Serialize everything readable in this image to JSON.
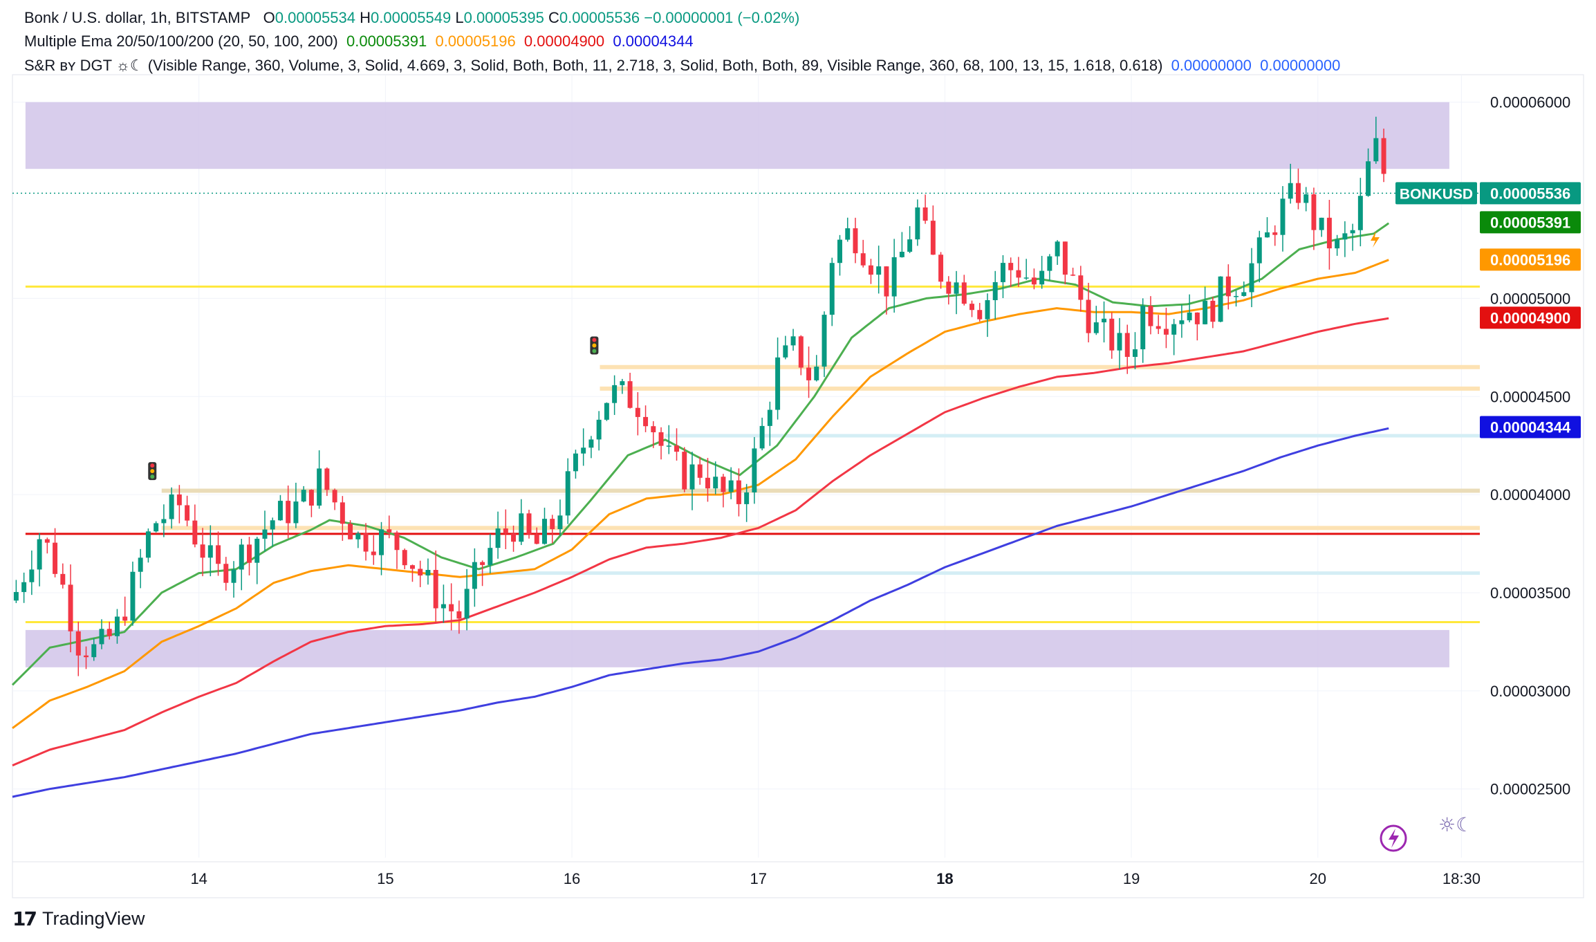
{
  "legend": {
    "line1": {
      "symbol": "Bonk / U.S. dollar, 1h, BITSTAMP",
      "o_label": "O",
      "o_value": "0.00005534",
      "h_label": "H",
      "h_value": "0.00005549",
      "l_label": "L",
      "l_value": "0.00005395",
      "c_label": "C",
      "c_value": "0.00005536",
      "change": "−0.00000001 (−0.02%)"
    },
    "line2": {
      "name": "Multiple Ema 20/50/100/200 (20, 50, 100, 200)",
      "values": [
        "0.00005391",
        "0.00005196",
        "0.00004900",
        "0.00004344"
      ]
    },
    "line3": {
      "name": "S&R ʙʏ DGT ☼☾ (Visible Range, 360, Volume, 3, Solid, 4.669, 3, Solid, Both, Both, 11, 2.718, 3, Solid, Both, Both, 89, Visible Range, 360, 68, 100, 13, 15, 1.618, 0.618)",
      "values": [
        "0.00000000",
        "0.00000000"
      ]
    }
  },
  "footer": {
    "logo": "𝟭𝟳",
    "brand": "TradingView"
  },
  "watermark": "☼☾",
  "colors": {
    "up": "#089981",
    "down": "#f23645",
    "ema20": "#4caf50",
    "ema50": "#ff9800",
    "ema100": "#f23645",
    "ema200": "#3f3fe0",
    "zone": "#d1c4e9",
    "yellow": "#ffeb3b",
    "red_line": "#e31010"
  },
  "chart_data": {
    "type": "candlestick",
    "title": "Bonk / U.S. dollar, 1h, BITSTAMP",
    "y_ticks": [
      "0.00002500",
      "0.00003000",
      "0.00003500",
      "0.00004000",
      "0.00004500",
      "0.00005000",
      "0.00006000"
    ],
    "y_tick_values": [
      2.5e-05,
      3e-05,
      3.5e-05,
      4e-05,
      4.5e-05,
      5e-05,
      6e-05
    ],
    "ylim": [
      2.15e-05,
      6.14e-05
    ],
    "x_ticks": [
      {
        "label": "14",
        "day": 14,
        "bold": false
      },
      {
        "label": "15",
        "day": 15,
        "bold": false
      },
      {
        "label": "16",
        "day": 16,
        "bold": false
      },
      {
        "label": "17",
        "day": 17,
        "bold": false
      },
      {
        "label": "18",
        "day": 18,
        "bold": true
      },
      {
        "label": "19",
        "day": 19,
        "bold": false
      },
      {
        "label": "20",
        "day": 20,
        "bold": false
      },
      {
        "label": "18:30",
        "day": 20.77,
        "bold": false
      }
    ],
    "x_range_days": [
      13.0,
      20.85
    ],
    "last_day": 20.39,
    "price_labels": [
      {
        "text": "BONKUSD",
        "value": 5.536e-05,
        "color": "#089981",
        "wide": true
      },
      {
        "text": "0.00005536",
        "value": 5.536e-05,
        "color": "#089981"
      },
      {
        "text": "0.00005391",
        "value": 5.391e-05,
        "color": "#0a8a0a"
      },
      {
        "text": "0.00005196",
        "value": 5.196e-05,
        "color": "#ff9800"
      },
      {
        "text": "0.00004900",
        "value": 4.9e-05,
        "color": "#e31010"
      },
      {
        "text": "0.00004344",
        "value": 4.344e-05,
        "color": "#1010e0"
      }
    ],
    "zones": [
      {
        "from": 5.66e-05,
        "to": 6e-05,
        "color": "#d1c4e9"
      },
      {
        "from": 3.12e-05,
        "to": 3.31e-05,
        "color": "#d1c4e9"
      }
    ],
    "levels": [
      {
        "value": 5.06e-05,
        "color": "#ffe83a",
        "width": 3,
        "start_day": 13.07
      },
      {
        "value": 3.35e-05,
        "color": "#ffe83a",
        "width": 3,
        "start_day": 13.07
      },
      {
        "value": 3.8e-05,
        "color": "#e31010",
        "width": 3,
        "start_day": 13.07
      },
      {
        "value": 4.65e-05,
        "color": "#fde2b3",
        "width": 6,
        "start_day": 16.15
      },
      {
        "value": 4.54e-05,
        "color": "#fde2b3",
        "width": 6,
        "start_day": 16.15
      },
      {
        "value": 4.3e-05,
        "color": "#d4eef5",
        "width": 5,
        "start_day": 16.5
      },
      {
        "value": 4.02e-05,
        "color": "#eadcb8",
        "width": 6,
        "start_day": 13.8
      },
      {
        "value": 3.83e-05,
        "color": "#fde2b3",
        "width": 6,
        "start_day": 13.8
      },
      {
        "value": 3.6e-05,
        "color": "#d4eef5",
        "width": 5,
        "start_day": 15.5
      }
    ],
    "candle_points": [
      [
        13.0,
        3.46e-05
      ],
      [
        13.15,
        3.8e-05
      ],
      [
        13.25,
        3.6e-05
      ],
      [
        13.35,
        3.25e-05
      ],
      [
        13.45,
        3.2e-05
      ],
      [
        13.55,
        3.3e-05
      ],
      [
        13.65,
        3.55e-05
      ],
      [
        13.75,
        3.85e-05
      ],
      [
        13.9,
        3.95e-05
      ],
      [
        14.0,
        3.75e-05
      ],
      [
        14.1,
        3.6e-05
      ],
      [
        14.25,
        3.72e-05
      ],
      [
        14.4,
        3.88e-05
      ],
      [
        14.55,
        3.95e-05
      ],
      [
        14.65,
        4.08e-05
      ],
      [
        14.75,
        3.93e-05
      ],
      [
        14.85,
        3.78e-05
      ],
      [
        15.0,
        3.78e-05
      ],
      [
        15.1,
        3.72e-05
      ],
      [
        15.2,
        3.58e-05
      ],
      [
        15.3,
        3.45e-05
      ],
      [
        15.4,
        3.38e-05
      ],
      [
        15.5,
        3.62e-05
      ],
      [
        15.6,
        3.78e-05
      ],
      [
        15.7,
        3.85e-05
      ],
      [
        15.8,
        3.73e-05
      ],
      [
        15.9,
        3.85e-05
      ],
      [
        16.0,
        4.1e-05
      ],
      [
        16.1,
        4.35e-05
      ],
      [
        16.2,
        4.52e-05
      ],
      [
        16.3,
        4.5e-05
      ],
      [
        16.4,
        4.43e-05
      ],
      [
        16.5,
        4.2e-05
      ],
      [
        16.6,
        4.1e-05
      ],
      [
        16.7,
        4.13e-05
      ],
      [
        16.8,
        4e-05
      ],
      [
        16.9,
        3.98e-05
      ],
      [
        17.0,
        4.25e-05
      ],
      [
        17.1,
        4.65e-05
      ],
      [
        17.2,
        4.75e-05
      ],
      [
        17.3,
        4.55e-05
      ],
      [
        17.4,
        5.25e-05
      ],
      [
        17.5,
        5.35e-05
      ],
      [
        17.6,
        5.2e-05
      ],
      [
        17.7,
        5.05e-05
      ],
      [
        17.8,
        5.3e-05
      ],
      [
        17.85,
        5.45e-05
      ],
      [
        17.95,
        5.15e-05
      ],
      [
        18.1,
        5.05e-05
      ],
      [
        18.2,
        4.95e-05
      ],
      [
        18.3,
        5.15e-05
      ],
      [
        18.4,
        5.15e-05
      ],
      [
        18.5,
        5.05e-05
      ],
      [
        18.6,
        5.25e-05
      ],
      [
        18.7,
        5.05e-05
      ],
      [
        18.8,
        4.85e-05
      ],
      [
        18.9,
        4.78e-05
      ],
      [
        19.0,
        4.7e-05
      ],
      [
        19.05,
        4.95e-05
      ],
      [
        19.2,
        4.9e-05
      ],
      [
        19.3,
        4.95e-05
      ],
      [
        19.4,
        4.92e-05
      ],
      [
        19.5,
        5.05e-05
      ],
      [
        19.6,
        5.1e-05
      ],
      [
        19.7,
        5.25e-05
      ],
      [
        19.8,
        5.45e-05
      ],
      [
        19.9,
        5.55e-05
      ],
      [
        20.0,
        5.35e-05
      ],
      [
        20.1,
        5.25e-05
      ],
      [
        20.2,
        5.35e-05
      ],
      [
        20.3,
        5.8e-05
      ],
      [
        20.39,
        5.53e-05
      ]
    ],
    "ema20_points": [
      [
        13.0,
        3.03e-05
      ],
      [
        13.2,
        3.22e-05
      ],
      [
        13.4,
        3.26e-05
      ],
      [
        13.6,
        3.3e-05
      ],
      [
        13.8,
        3.5e-05
      ],
      [
        14.0,
        3.6e-05
      ],
      [
        14.2,
        3.62e-05
      ],
      [
        14.4,
        3.74e-05
      ],
      [
        14.6,
        3.82e-05
      ],
      [
        14.7,
        3.87e-05
      ],
      [
        14.9,
        3.84e-05
      ],
      [
        15.1,
        3.78e-05
      ],
      [
        15.3,
        3.68e-05
      ],
      [
        15.5,
        3.62e-05
      ],
      [
        15.7,
        3.68e-05
      ],
      [
        15.9,
        3.75e-05
      ],
      [
        16.1,
        3.97e-05
      ],
      [
        16.3,
        4.2e-05
      ],
      [
        16.5,
        4.28e-05
      ],
      [
        16.7,
        4.18e-05
      ],
      [
        16.9,
        4.1e-05
      ],
      [
        17.1,
        4.25e-05
      ],
      [
        17.3,
        4.5e-05
      ],
      [
        17.5,
        4.8e-05
      ],
      [
        17.7,
        4.95e-05
      ],
      [
        17.9,
        5e-05
      ],
      [
        18.1,
        5.02e-05
      ],
      [
        18.3,
        5.05e-05
      ],
      [
        18.5,
        5.1e-05
      ],
      [
        18.7,
        5.07e-05
      ],
      [
        18.9,
        4.98e-05
      ],
      [
        19.1,
        4.96e-05
      ],
      [
        19.3,
        4.97e-05
      ],
      [
        19.5,
        5.02e-05
      ],
      [
        19.7,
        5.1e-05
      ],
      [
        19.9,
        5.25e-05
      ],
      [
        20.1,
        5.3e-05
      ],
      [
        20.3,
        5.33e-05
      ],
      [
        20.39,
        5.39e-05
      ]
    ],
    "ema50_points": [
      [
        13.0,
        2.81e-05
      ],
      [
        13.2,
        2.95e-05
      ],
      [
        13.4,
        3.02e-05
      ],
      [
        13.6,
        3.1e-05
      ],
      [
        13.8,
        3.25e-05
      ],
      [
        14.0,
        3.33e-05
      ],
      [
        14.2,
        3.42e-05
      ],
      [
        14.4,
        3.55e-05
      ],
      [
        14.6,
        3.61e-05
      ],
      [
        14.8,
        3.64e-05
      ],
      [
        15.0,
        3.62e-05
      ],
      [
        15.2,
        3.6e-05
      ],
      [
        15.4,
        3.58e-05
      ],
      [
        15.6,
        3.6e-05
      ],
      [
        15.8,
        3.62e-05
      ],
      [
        16.0,
        3.72e-05
      ],
      [
        16.2,
        3.9e-05
      ],
      [
        16.4,
        3.98e-05
      ],
      [
        16.6,
        4e-05
      ],
      [
        16.8,
        4e-05
      ],
      [
        17.0,
        4.05e-05
      ],
      [
        17.2,
        4.18e-05
      ],
      [
        17.4,
        4.4e-05
      ],
      [
        17.6,
        4.6e-05
      ],
      [
        17.8,
        4.72e-05
      ],
      [
        18.0,
        4.83e-05
      ],
      [
        18.2,
        4.88e-05
      ],
      [
        18.4,
        4.92e-05
      ],
      [
        18.6,
        4.95e-05
      ],
      [
        18.8,
        4.93e-05
      ],
      [
        19.0,
        4.93e-05
      ],
      [
        19.2,
        4.92e-05
      ],
      [
        19.4,
        4.95e-05
      ],
      [
        19.6,
        4.99e-05
      ],
      [
        19.8,
        5.05e-05
      ],
      [
        20.0,
        5.1e-05
      ],
      [
        20.2,
        5.13e-05
      ],
      [
        20.39,
        5.2e-05
      ]
    ],
    "ema100_points": [
      [
        13.0,
        2.62e-05
      ],
      [
        13.2,
        2.7e-05
      ],
      [
        13.4,
        2.75e-05
      ],
      [
        13.6,
        2.8e-05
      ],
      [
        13.8,
        2.89e-05
      ],
      [
        14.0,
        2.97e-05
      ],
      [
        14.2,
        3.04e-05
      ],
      [
        14.4,
        3.15e-05
      ],
      [
        14.6,
        3.25e-05
      ],
      [
        14.8,
        3.3e-05
      ],
      [
        15.0,
        3.33e-05
      ],
      [
        15.2,
        3.34e-05
      ],
      [
        15.4,
        3.36e-05
      ],
      [
        15.6,
        3.43e-05
      ],
      [
        15.8,
        3.5e-05
      ],
      [
        16.0,
        3.58e-05
      ],
      [
        16.2,
        3.67e-05
      ],
      [
        16.4,
        3.73e-05
      ],
      [
        16.6,
        3.75e-05
      ],
      [
        16.8,
        3.78e-05
      ],
      [
        17.0,
        3.83e-05
      ],
      [
        17.2,
        3.92e-05
      ],
      [
        17.4,
        4.07e-05
      ],
      [
        17.6,
        4.2e-05
      ],
      [
        17.8,
        4.31e-05
      ],
      [
        18.0,
        4.42e-05
      ],
      [
        18.2,
        4.49e-05
      ],
      [
        18.4,
        4.55e-05
      ],
      [
        18.6,
        4.6e-05
      ],
      [
        18.8,
        4.62e-05
      ],
      [
        19.0,
        4.65e-05
      ],
      [
        19.2,
        4.67e-05
      ],
      [
        19.4,
        4.7e-05
      ],
      [
        19.6,
        4.73e-05
      ],
      [
        19.8,
        4.78e-05
      ],
      [
        20.0,
        4.83e-05
      ],
      [
        20.2,
        4.87e-05
      ],
      [
        20.39,
        4.9e-05
      ]
    ],
    "ema200_points": [
      [
        13.0,
        2.46e-05
      ],
      [
        13.2,
        2.5e-05
      ],
      [
        13.4,
        2.53e-05
      ],
      [
        13.6,
        2.56e-05
      ],
      [
        13.8,
        2.6e-05
      ],
      [
        14.0,
        2.64e-05
      ],
      [
        14.2,
        2.68e-05
      ],
      [
        14.4,
        2.73e-05
      ],
      [
        14.6,
        2.78e-05
      ],
      [
        14.8,
        2.81e-05
      ],
      [
        15.0,
        2.84e-05
      ],
      [
        15.2,
        2.87e-05
      ],
      [
        15.4,
        2.9e-05
      ],
      [
        15.6,
        2.94e-05
      ],
      [
        15.8,
        2.97e-05
      ],
      [
        16.0,
        3.02e-05
      ],
      [
        16.2,
        3.08e-05
      ],
      [
        16.4,
        3.11e-05
      ],
      [
        16.6,
        3.14e-05
      ],
      [
        16.8,
        3.16e-05
      ],
      [
        17.0,
        3.2e-05
      ],
      [
        17.2,
        3.27e-05
      ],
      [
        17.4,
        3.36e-05
      ],
      [
        17.6,
        3.46e-05
      ],
      [
        17.8,
        3.54e-05
      ],
      [
        18.0,
        3.63e-05
      ],
      [
        18.2,
        3.7e-05
      ],
      [
        18.4,
        3.77e-05
      ],
      [
        18.6,
        3.84e-05
      ],
      [
        18.8,
        3.89e-05
      ],
      [
        19.0,
        3.94e-05
      ],
      [
        19.2,
        4e-05
      ],
      [
        19.4,
        4.06e-05
      ],
      [
        19.6,
        4.12e-05
      ],
      [
        19.8,
        4.19e-05
      ],
      [
        20.0,
        4.25e-05
      ],
      [
        20.2,
        4.3e-05
      ],
      [
        20.39,
        4.34e-05
      ]
    ]
  }
}
